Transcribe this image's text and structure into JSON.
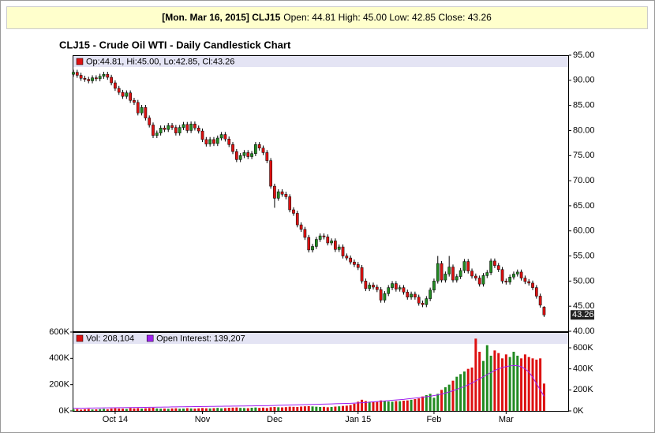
{
  "header": {
    "title": "[Mon. Mar 16, 2015] CLJ15",
    "summary": "Open: 44.81 High: 45.00 Low: 42.85 Close: 43.26"
  },
  "chart_data": [
    {
      "type": "candlestick",
      "title": "CLJ15 - Crude Oil WTI - Daily Candlestick Chart",
      "legend": "Op:44.81, Hi:45.00, Lo:42.85, Cl:43.26",
      "up_color": "#228b22",
      "down_color": "#dd1111",
      "categories": [
        null,
        null,
        null,
        null,
        null,
        null,
        null,
        null,
        null,
        null,
        null,
        "Oct 14",
        null,
        null,
        null,
        null,
        null,
        null,
        null,
        null,
        null,
        null,
        null,
        null,
        null,
        null,
        null,
        null,
        null,
        null,
        null,
        null,
        null,
        null,
        "Nov",
        null,
        null,
        null,
        null,
        null,
        null,
        null,
        null,
        null,
        null,
        null,
        null,
        null,
        null,
        null,
        null,
        null,
        null,
        "Dec",
        null,
        null,
        null,
        null,
        null,
        null,
        null,
        null,
        null,
        null,
        null,
        null,
        null,
        null,
        null,
        null,
        null,
        null,
        null,
        null,
        null,
        "Jan 15",
        null,
        null,
        null,
        null,
        null,
        null,
        null,
        null,
        null,
        null,
        null,
        null,
        null,
        null,
        null,
        null,
        null,
        null,
        null,
        "Feb",
        null,
        null,
        null,
        null,
        null,
        null,
        null,
        null,
        null,
        null,
        null,
        null,
        null,
        null,
        null,
        null,
        null,
        null,
        "Mar",
        null,
        null,
        null,
        null,
        null,
        null,
        null,
        null,
        null,
        null
      ],
      "open": [
        91.2,
        91.6,
        91.0,
        90.4,
        90.2,
        89.9,
        90.5,
        90.3,
        90.8,
        91.2,
        90.6,
        89.5,
        88.4,
        87.6,
        86.8,
        87.5,
        86.0,
        85.6,
        83.5,
        84.6,
        82.5,
        81.1,
        79.0,
        79.5,
        80.5,
        80.2,
        81.0,
        80.6,
        79.5,
        80.6,
        81.2,
        80.0,
        81.3,
        80.5,
        79.9,
        78.2,
        77.3,
        78.2,
        77.4,
        78.5,
        79.2,
        78.3,
        77.2,
        75.8,
        74.2,
        75.0,
        75.6,
        74.8,
        75.4,
        77.2,
        76.5,
        75.6,
        74.0,
        68.9,
        66.5,
        67.8,
        67.3,
        66.8,
        64.2,
        63.5,
        61.2,
        60.3,
        58.7,
        56.2,
        56.9,
        58.3,
        59.0,
        58.8,
        57.6,
        58.0,
        56.3,
        56.8,
        55.0,
        54.6,
        53.8,
        53.3,
        52.7,
        50.0,
        48.5,
        49.2,
        48.8,
        48.3,
        46.2,
        47.5,
        48.7,
        49.5,
        48.4,
        48.7,
        47.8,
        46.8,
        47.4,
        46.8,
        45.6,
        45.3,
        46.5,
        48.2,
        50.0,
        53.5,
        50.2,
        51.4,
        52.8,
        50.2,
        50.9,
        52.1,
        53.9,
        52.0,
        51.0,
        50.6,
        49.4,
        51.1,
        51.7,
        54.0,
        53.1,
        52.3,
        50.0,
        49.8,
        50.8,
        51.4,
        51.8,
        50.6,
        49.9,
        49.6,
        48.7,
        47.0,
        44.81
      ],
      "high": [
        92.1,
        92.1,
        91.5,
        90.9,
        90.7,
        91.0,
        91.0,
        91.3,
        91.7,
        91.7,
        91.1,
        90.0,
        88.9,
        88.1,
        88.0,
        88.0,
        86.5,
        86.1,
        85.1,
        85.1,
        83.0,
        81.6,
        80.0,
        81.0,
        81.0,
        81.5,
        81.5,
        81.1,
        81.1,
        81.7,
        81.7,
        81.8,
        81.8,
        81.0,
        80.4,
        78.7,
        78.7,
        78.7,
        79.0,
        79.7,
        79.7,
        78.8,
        77.7,
        76.3,
        75.5,
        76.1,
        76.1,
        75.9,
        77.7,
        77.7,
        77.0,
        76.1,
        74.5,
        69.4,
        68.3,
        68.3,
        67.8,
        67.3,
        64.7,
        64.0,
        61.7,
        60.8,
        59.2,
        57.4,
        58.8,
        59.5,
        59.5,
        59.3,
        58.5,
        58.5,
        57.3,
        57.3,
        55.5,
        55.1,
        54.3,
        53.8,
        53.2,
        50.5,
        49.7,
        49.7,
        49.3,
        48.8,
        48.0,
        49.2,
        50.0,
        50.0,
        49.2,
        49.2,
        48.3,
        47.9,
        47.9,
        47.3,
        46.1,
        47.0,
        48.7,
        50.5,
        55.0,
        54.0,
        51.9,
        55.0,
        53.3,
        51.4,
        52.6,
        54.4,
        54.4,
        52.5,
        51.5,
        51.1,
        51.6,
        52.2,
        54.5,
        54.5,
        53.6,
        52.8,
        50.5,
        51.3,
        51.9,
        52.3,
        52.3,
        51.1,
        50.4,
        50.1,
        49.2,
        47.5,
        45.0
      ],
      "low": [
        90.7,
        90.5,
        89.9,
        89.7,
        89.4,
        89.4,
        89.8,
        89.8,
        90.3,
        90.1,
        89.0,
        87.9,
        87.1,
        86.3,
        86.3,
        85.5,
        85.1,
        83.0,
        83.0,
        82.0,
        80.6,
        78.5,
        78.5,
        79.0,
        79.7,
        79.7,
        80.1,
        79.0,
        79.0,
        80.1,
        79.5,
        79.5,
        80.0,
        79.4,
        77.7,
        76.8,
        76.8,
        76.9,
        76.9,
        78.0,
        77.8,
        76.7,
        75.3,
        73.7,
        73.7,
        74.5,
        74.3,
        74.3,
        74.9,
        76.0,
        75.1,
        73.5,
        68.4,
        64.6,
        66.0,
        66.8,
        66.3,
        63.7,
        63.0,
        60.7,
        59.8,
        58.2,
        55.7,
        55.7,
        56.4,
        57.8,
        58.3,
        57.1,
        57.1,
        55.8,
        55.8,
        54.5,
        54.1,
        53.3,
        52.8,
        52.2,
        49.5,
        48.0,
        48.0,
        48.3,
        47.8,
        45.7,
        45.7,
        47.0,
        48.2,
        47.9,
        47.9,
        47.3,
        46.3,
        46.3,
        46.3,
        45.1,
        44.8,
        44.8,
        46.0,
        47.7,
        49.5,
        49.7,
        49.7,
        50.9,
        49.7,
        49.7,
        50.4,
        51.6,
        51.5,
        50.5,
        50.1,
        48.9,
        48.9,
        50.6,
        51.2,
        52.6,
        51.8,
        49.5,
        49.3,
        49.3,
        50.3,
        50.9,
        50.1,
        49.4,
        49.1,
        48.2,
        46.5,
        44.7,
        42.85
      ],
      "close": [
        91.6,
        91.0,
        90.4,
        90.2,
        89.9,
        90.5,
        90.3,
        90.8,
        91.2,
        90.6,
        89.5,
        88.4,
        87.6,
        86.8,
        87.5,
        86.0,
        85.6,
        83.5,
        84.6,
        82.5,
        81.1,
        79.0,
        79.5,
        80.5,
        80.2,
        81.0,
        80.6,
        79.5,
        80.6,
        81.2,
        80.0,
        81.3,
        80.5,
        79.9,
        78.2,
        77.3,
        78.2,
        77.4,
        78.5,
        79.2,
        78.3,
        77.2,
        75.8,
        74.2,
        75.0,
        75.6,
        74.8,
        75.4,
        77.2,
        76.5,
        75.6,
        74.0,
        68.9,
        66.5,
        67.8,
        67.3,
        66.8,
        64.2,
        63.5,
        61.2,
        60.3,
        58.7,
        56.2,
        56.9,
        58.3,
        59.0,
        58.8,
        57.6,
        58.0,
        56.3,
        56.8,
        55.0,
        54.6,
        53.8,
        53.3,
        52.7,
        50.0,
        48.5,
        49.2,
        48.8,
        48.3,
        46.2,
        47.5,
        48.7,
        49.5,
        48.4,
        48.7,
        47.8,
        46.8,
        47.4,
        46.8,
        45.6,
        45.3,
        46.5,
        48.2,
        50.0,
        53.5,
        50.2,
        51.4,
        52.8,
        50.2,
        50.9,
        52.1,
        53.9,
        52.0,
        51.0,
        50.6,
        49.4,
        51.1,
        51.7,
        54.0,
        53.1,
        52.3,
        50.0,
        49.8,
        50.8,
        51.4,
        51.8,
        50.6,
        49.9,
        49.6,
        48.7,
        47.0,
        45.2,
        43.26
      ],
      "ylim": [
        40,
        95
      ],
      "yticks": [
        {
          "value": 40,
          "label": "40.00"
        },
        {
          "value": 45,
          "label": "45.00"
        },
        {
          "value": 50,
          "label": "50.00"
        },
        {
          "value": 55,
          "label": "55.00"
        },
        {
          "value": 60,
          "label": "60.00"
        },
        {
          "value": 65,
          "label": "65.00"
        },
        {
          "value": 70,
          "label": "70.00"
        },
        {
          "value": 75,
          "label": "75.00"
        },
        {
          "value": 80,
          "label": "80.00"
        },
        {
          "value": 85,
          "label": "85.00"
        },
        {
          "value": 90,
          "label": "90.00"
        },
        {
          "value": 95,
          "label": "95.00"
        }
      ]
    },
    {
      "type": "bar",
      "series": [
        {
          "name": "Vol: 208,104",
          "color": "#dd1111",
          "up_color": "#228b22",
          "values": [
            12000,
            14000,
            10000,
            13000,
            15000,
            11000,
            12000,
            14000,
            16000,
            13000,
            18000,
            20000,
            18000,
            17000,
            15000,
            22000,
            19000,
            21000,
            18000,
            20000,
            22000,
            24000,
            19000,
            17000,
            18000,
            16000,
            19000,
            20000,
            17000,
            18000,
            21000,
            19000,
            18000,
            20000,
            22000,
            20000,
            19000,
            21000,
            23000,
            20000,
            22000,
            24000,
            25000,
            26000,
            23000,
            22000,
            21000,
            24000,
            26000,
            23000,
            25000,
            22000,
            28000,
            30000,
            28000,
            27000,
            29000,
            32000,
            31000,
            30000,
            33000,
            35000,
            36000,
            34000,
            32000,
            30000,
            31000,
            28000,
            30000,
            33000,
            35000,
            38000,
            40000,
            45000,
            55000,
            70000,
            85000,
            75000,
            70000,
            72000,
            68000,
            80000,
            78000,
            72000,
            70000,
            75000,
            74000,
            78000,
            80000,
            85000,
            90000,
            95000,
            110000,
            120000,
            130000,
            100000,
            130000,
            160000,
            180000,
            200000,
            230000,
            260000,
            280000,
            300000,
            320000,
            330000,
            550000,
            450000,
            380000,
            500000,
            420000,
            460000,
            440000,
            400000,
            430000,
            410000,
            450000,
            420000,
            400000,
            430000,
            410000,
            400000,
            390000,
            400000,
            208104
          ]
        },
        {
          "name": "Open Interest: 139,207",
          "color": "#a020f0",
          "axis": "y2",
          "values": [
            25000,
            25000,
            26000,
            26000,
            27000,
            27000,
            28000,
            28000,
            29000,
            29000,
            30000,
            30000,
            31000,
            31000,
            32000,
            32000,
            33000,
            33000,
            34000,
            34000,
            35000,
            35000,
            36000,
            36000,
            37000,
            37000,
            38000,
            38000,
            39000,
            39000,
            40000,
            40000,
            41000,
            41000,
            42000,
            42000,
            43000,
            43000,
            44000,
            44000,
            45000,
            45000,
            46000,
            46000,
            47000,
            47000,
            48000,
            48000,
            49000,
            49000,
            50000,
            50000,
            51000,
            52000,
            53000,
            54000,
            55000,
            56000,
            57000,
            58000,
            59000,
            60000,
            61000,
            62000,
            63000,
            64000,
            65000,
            66000,
            67000,
            68000,
            69000,
            70000,
            71000,
            72000,
            74000,
            76000,
            78000,
            80000,
            83000,
            86000,
            89000,
            92000,
            95000,
            98000,
            101000,
            104000,
            107000,
            110000,
            114000,
            118000,
            122000,
            126000,
            130000,
            135000,
            140000,
            146000,
            152000,
            160000,
            170000,
            180000,
            192000,
            205000,
            218000,
            232000,
            248000,
            265000,
            285000,
            305000,
            325000,
            345000,
            365000,
            385000,
            400000,
            412000,
            422000,
            428000,
            432000,
            430000,
            420000,
            400000,
            370000,
            320000,
            260000,
            200000,
            139207
          ]
        }
      ],
      "ylim": [
        0,
        600000
      ],
      "yticks": [
        {
          "value": 0,
          "label": "0K"
        },
        {
          "value": 200000,
          "label": "200K"
        },
        {
          "value": 400000,
          "label": "400K"
        },
        {
          "value": 600000,
          "label": "600K"
        }
      ],
      "y2lim": [
        0,
        750000
      ],
      "y2ticks": [
        {
          "value": 0,
          "label": "0K"
        },
        {
          "value": 200000,
          "label": "200K"
        },
        {
          "value": 400000,
          "label": "400K"
        },
        {
          "value": 600000,
          "label": "600K"
        }
      ]
    }
  ]
}
